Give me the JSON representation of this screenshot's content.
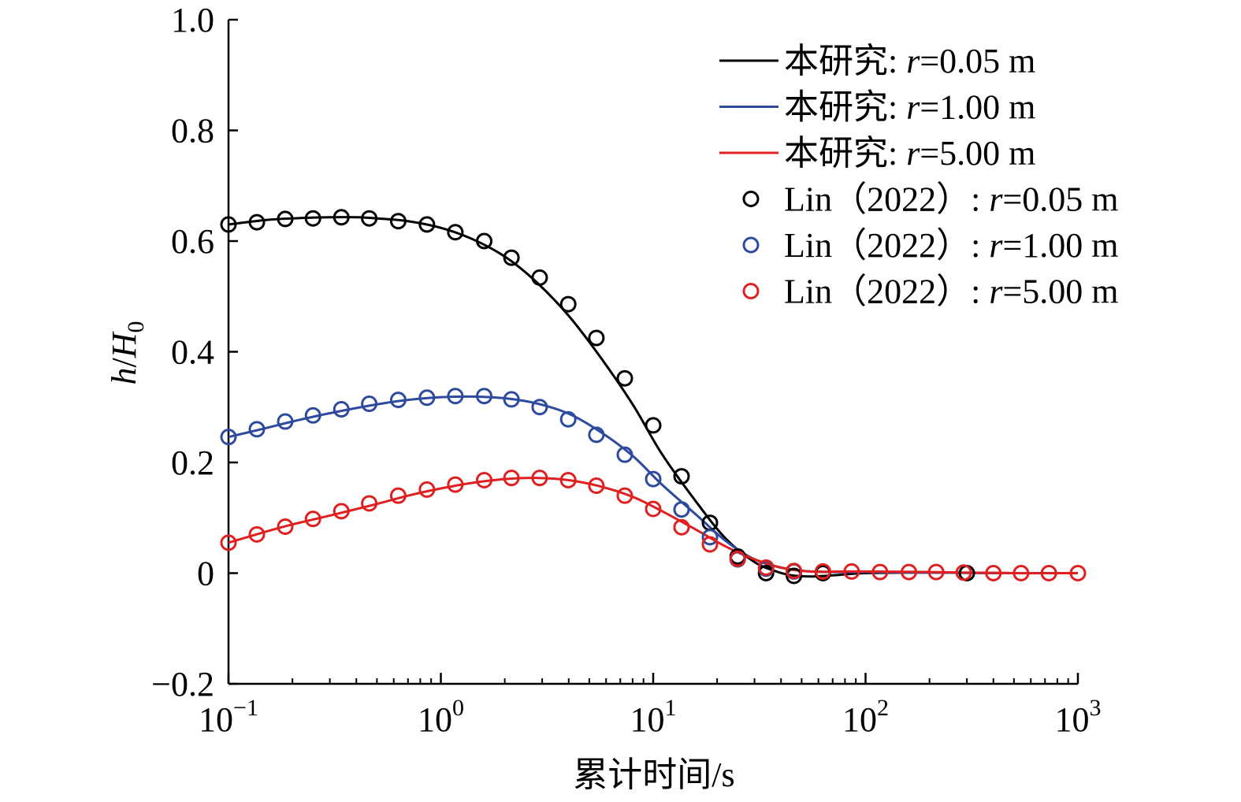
{
  "chart_data": {
    "type": "line",
    "xscale": "log",
    "xlim": [
      0.1,
      1000
    ],
    "ylim": [
      -0.2,
      1.0
    ],
    "xlabel": "累计时间/s",
    "ylabel": "h/H0",
    "grid": false,
    "legend_position": "top-right",
    "x_ticks": [
      {
        "value": 0.1,
        "base": "10",
        "exp": "−1"
      },
      {
        "value": 1,
        "base": "10",
        "exp": "0"
      },
      {
        "value": 10,
        "base": "10",
        "exp": "1"
      },
      {
        "value": 100,
        "base": "10",
        "exp": "2"
      },
      {
        "value": 1000,
        "base": "10",
        "exp": "3"
      }
    ],
    "y_ticks": [
      {
        "value": 1.0,
        "label": "1.0"
      },
      {
        "value": 0.8,
        "label": "0.8"
      },
      {
        "value": 0.6,
        "label": "0.6"
      },
      {
        "value": 0.4,
        "label": "0.4"
      },
      {
        "value": 0.2,
        "label": "0.2"
      },
      {
        "value": 0.0,
        "label": "0"
      },
      {
        "value": -0.2,
        "label": "−0.2"
      }
    ],
    "series": [
      {
        "name": "本研究: r=0.05 m",
        "label_prefix": "本研究: ",
        "label_var": "r",
        "label_suffix": "=0.05 m",
        "kind": "line",
        "color": "#000000",
        "x": [
          0.1,
          0.15,
          0.2,
          0.3,
          0.4,
          0.5,
          0.7,
          1.0,
          1.4,
          2.0,
          2.8,
          4.0,
          5.6,
          8.0,
          11,
          16,
          22,
          30,
          38,
          45,
          55,
          70,
          100,
          200,
          500,
          1000
        ],
        "y": [
          0.63,
          0.638,
          0.641,
          0.643,
          0.643,
          0.641,
          0.636,
          0.624,
          0.604,
          0.572,
          0.527,
          0.465,
          0.392,
          0.305,
          0.215,
          0.128,
          0.062,
          0.02,
          0.003,
          -0.004,
          -0.006,
          -0.004,
          0.0,
          0.001,
          0.0,
          0.0
        ]
      },
      {
        "name": "本研究: r=1.00 m",
        "label_prefix": "本研究: ",
        "label_var": "r",
        "label_suffix": "=1.00 m",
        "kind": "line",
        "color": "#2e4a9e",
        "x": [
          0.1,
          0.15,
          0.2,
          0.3,
          0.5,
          0.7,
          1.0,
          1.4,
          2.0,
          2.8,
          4.0,
          5.6,
          8.0,
          11,
          16,
          22,
          30,
          40,
          55,
          80,
          100,
          200,
          500,
          1000
        ],
        "y": [
          0.246,
          0.262,
          0.274,
          0.289,
          0.305,
          0.313,
          0.318,
          0.319,
          0.316,
          0.307,
          0.288,
          0.256,
          0.212,
          0.16,
          0.105,
          0.058,
          0.025,
          0.01,
          0.003,
          0.002,
          0.002,
          0.001,
          0.0,
          0.0
        ]
      },
      {
        "name": "本研究: r=5.00 m",
        "label_prefix": "本研究: ",
        "label_var": "r",
        "label_suffix": "=5.00 m",
        "kind": "line",
        "color": "#e02020",
        "x": [
          0.1,
          0.15,
          0.2,
          0.3,
          0.5,
          0.7,
          1.0,
          1.4,
          2.0,
          2.8,
          4.0,
          5.6,
          8.0,
          11,
          16,
          22,
          30,
          40,
          55,
          80,
          100,
          200,
          500,
          1000
        ],
        "y": [
          0.055,
          0.075,
          0.088,
          0.104,
          0.125,
          0.14,
          0.153,
          0.163,
          0.17,
          0.172,
          0.168,
          0.157,
          0.138,
          0.112,
          0.078,
          0.048,
          0.025,
          0.01,
          0.003,
          0.003,
          0.003,
          0.002,
          0.0,
          0.0
        ]
      },
      {
        "name": "Lin（2022）: r=0.05 m",
        "label_prefix": "Lin（2022）: ",
        "label_var": "r",
        "label_suffix": "=0.05 m",
        "kind": "marker",
        "color": "#000000",
        "x": [
          0.1,
          0.136,
          0.185,
          0.25,
          0.34,
          0.46,
          0.63,
          0.86,
          1.17,
          1.6,
          2.15,
          2.92,
          3.98,
          5.4,
          7.35,
          10,
          13.6,
          18.5,
          25,
          34,
          46,
          63,
          300
        ],
        "y": [
          0.63,
          0.634,
          0.64,
          0.641,
          0.643,
          0.641,
          0.636,
          0.63,
          0.616,
          0.6,
          0.57,
          0.534,
          0.486,
          0.425,
          0.352,
          0.267,
          0.175,
          0.091,
          0.03,
          0.0,
          -0.005,
          0.0,
          0.0
        ]
      },
      {
        "name": "Lin（2022）: r=1.00 m",
        "label_prefix": "Lin（2022）: ",
        "label_var": "r",
        "label_suffix": "=1.00 m",
        "kind": "marker",
        "color": "#2e4a9e",
        "x": [
          0.1,
          0.136,
          0.185,
          0.25,
          0.34,
          0.46,
          0.63,
          0.86,
          1.17,
          1.6,
          2.15,
          2.92,
          3.98,
          5.4,
          7.35,
          10,
          13.6,
          18.5,
          25,
          34,
          46
        ],
        "y": [
          0.246,
          0.26,
          0.274,
          0.285,
          0.296,
          0.306,
          0.313,
          0.317,
          0.32,
          0.32,
          0.314,
          0.3,
          0.278,
          0.25,
          0.214,
          0.17,
          0.115,
          0.065,
          0.025,
          0.008,
          0.003
        ]
      },
      {
        "name": "Lin（2022）: r=5.00 m",
        "label_prefix": "Lin（2022）: ",
        "label_var": "r",
        "label_suffix": "=5.00 m",
        "kind": "marker",
        "color": "#e02020",
        "x": [
          0.1,
          0.136,
          0.185,
          0.25,
          0.34,
          0.46,
          0.63,
          0.86,
          1.17,
          1.6,
          2.15,
          2.92,
          3.98,
          5.4,
          7.35,
          10,
          13.6,
          18.5,
          25,
          34,
          46,
          63,
          86,
          117,
          160,
          215,
          290,
          400,
          540,
          730,
          1000
        ],
        "y": [
          0.055,
          0.07,
          0.084,
          0.098,
          0.112,
          0.126,
          0.14,
          0.151,
          0.16,
          0.168,
          0.172,
          0.172,
          0.168,
          0.158,
          0.14,
          0.116,
          0.083,
          0.052,
          0.026,
          0.01,
          0.004,
          0.003,
          0.003,
          0.002,
          0.002,
          0.002,
          0.001,
          0.0,
          0.0,
          0.0,
          0.0
        ]
      }
    ]
  }
}
